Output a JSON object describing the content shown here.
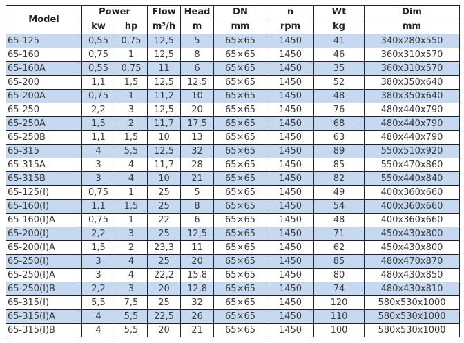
{
  "headers": {
    "model": "Model",
    "power": "Power",
    "flow": "Flow",
    "head": "Head",
    "dn": "DN",
    "n": "n",
    "wt": "Wt",
    "dim": "Dim",
    "units": {
      "kw": "kw",
      "hp": "hp",
      "flow": "m³/h",
      "head": "m",
      "dn": "mm",
      "n": "rpm",
      "wt": "kg",
      "dim": "mm"
    }
  },
  "row_highlight_color": "#c6d9f0",
  "rows": [
    [
      "65-125",
      "0,55",
      "0,75",
      "12,5",
      "5",
      "65×65",
      "1450",
      "41",
      "340x280x550"
    ],
    [
      "65-160",
      "0,75",
      "1",
      "12,5",
      "8",
      "65×65",
      "1450",
      "46",
      "360x310x570"
    ],
    [
      "65-160A",
      "0,55",
      "0,75",
      "11",
      "6",
      "65×65",
      "1450",
      "35",
      "360x310x570"
    ],
    [
      "65-200",
      "1,1",
      "1,5",
      "12,5",
      "12,5",
      "65×65",
      "1450",
      "52",
      "380x350x640"
    ],
    [
      "65-200A",
      "0,75",
      "1",
      "11,2",
      "10",
      "65×65",
      "1450",
      "48",
      "380x350x640"
    ],
    [
      "65-250",
      "2,2",
      "3",
      "12,5",
      "20",
      "65×65",
      "1450",
      "76",
      "480x440x790"
    ],
    [
      "65-250A",
      "1,5",
      "2",
      "11,7",
      "17,5",
      "65×65",
      "1450",
      "68",
      "480x440x790"
    ],
    [
      "65-250B",
      "1,1",
      "1,5",
      "10",
      "13",
      "65×65",
      "1450",
      "63",
      "480x440x790"
    ],
    [
      "65-315",
      "4",
      "5,5",
      "12,5",
      "32",
      "65×65",
      "1450",
      "89",
      "550x510x920"
    ],
    [
      "65-315A",
      "3",
      "4",
      "11,7",
      "28",
      "65×65",
      "1450",
      "85",
      "550x470x860"
    ],
    [
      "65-315B",
      "3",
      "4",
      "10",
      "21",
      "65×65",
      "1450",
      "82",
      "550x440x840"
    ],
    [
      "65-125(I)",
      "0,75",
      "1",
      "25",
      "5",
      "65×65",
      "1450",
      "49",
      "400x360x660"
    ],
    [
      "65-160(I)",
      "1,1",
      "1,5",
      "25",
      "8",
      "65×65",
      "1450",
      "54",
      "400x360x660"
    ],
    [
      "65-160(I)A",
      "0,75",
      "1",
      "22",
      "6",
      "65×65",
      "1450",
      "48",
      "400x360x660"
    ],
    [
      "65-200(I)",
      "2,2",
      "3",
      "25",
      "12,5",
      "65×65",
      "1450",
      "71",
      "450x430x800"
    ],
    [
      "65-200(I)A",
      "1,5",
      "2",
      "23,3",
      "11",
      "65×65",
      "1450",
      "62",
      "450x430x800"
    ],
    [
      "65-250(I)",
      "3",
      "4",
      "25",
      "20",
      "65×65",
      "1450",
      "85",
      "480x470x870"
    ],
    [
      "65-250(I)A",
      "3",
      "4",
      "22,2",
      "15,8",
      "65×65",
      "1450",
      "80",
      "480x430x850"
    ],
    [
      "65-250(I)B",
      "2,2",
      "3",
      "20",
      "12,8",
      "65×65",
      "1450",
      "74",
      "480x430x810"
    ],
    [
      "65-315(I)",
      "5,5",
      "7,5",
      "25",
      "32",
      "65×65",
      "1450",
      "120",
      "580x530x1000"
    ],
    [
      "65-315(I)A",
      "4",
      "5,5",
      "22,5",
      "26",
      "65×65",
      "1450",
      "110",
      "580x530x1000"
    ],
    [
      "65-315(I)B",
      "4",
      "5,5",
      "20",
      "21",
      "65×65",
      "1450",
      "100",
      "580x530x1000"
    ]
  ]
}
